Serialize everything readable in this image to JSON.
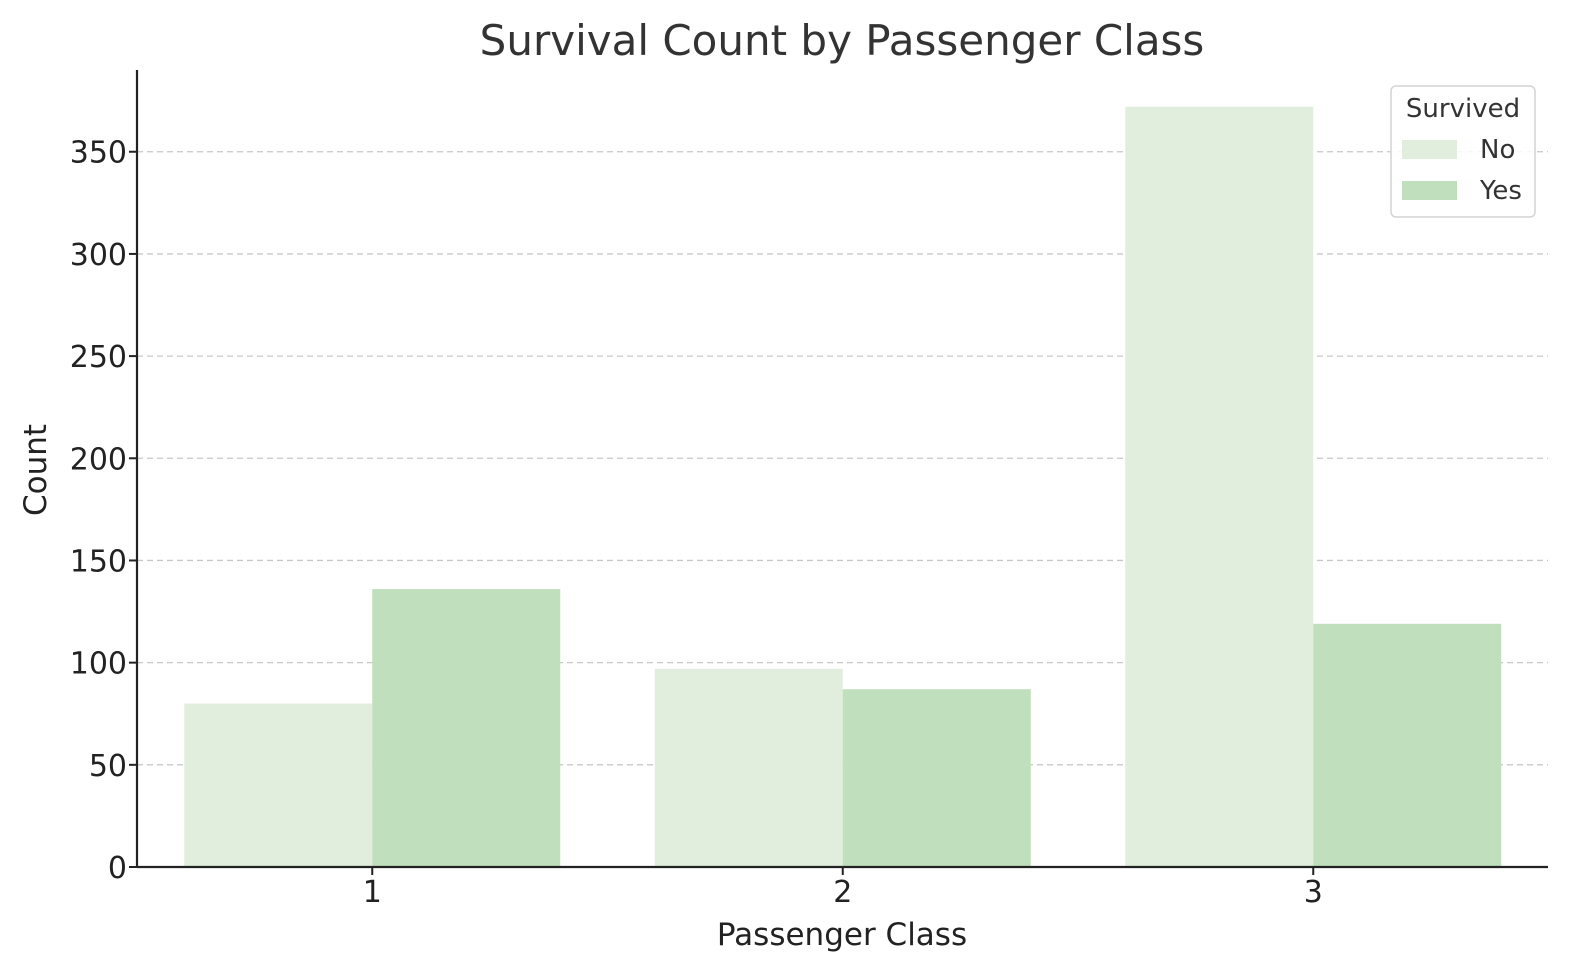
{
  "chart_data": {
    "type": "bar",
    "title": "Survival Count by Passenger Class",
    "xlabel": "Passenger Class",
    "ylabel": "Count",
    "categories": [
      "1",
      "2",
      "3"
    ],
    "series": [
      {
        "name": "No",
        "values": [
          80,
          97,
          372
        ],
        "color": "#e2eedd"
      },
      {
        "name": "Yes",
        "values": [
          136,
          87,
          119
        ],
        "color": "#c0dfbc"
      }
    ],
    "ylim": [
      0,
      390
    ],
    "yticks": [
      0,
      50,
      100,
      150,
      200,
      250,
      300,
      350
    ],
    "ytick_labels": [
      "0",
      "50",
      "100",
      "150",
      "200",
      "250",
      "300",
      "350"
    ],
    "grid": true,
    "legend": {
      "title": "Survived",
      "placement": "top-right"
    }
  }
}
